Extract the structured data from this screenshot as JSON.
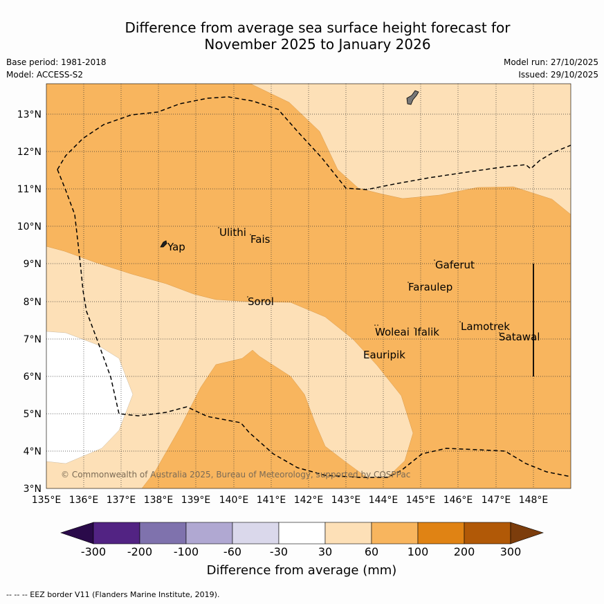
{
  "title_line1": "Difference from average sea surface height forecast for",
  "title_line2": "November 2025 to January 2026",
  "meta": {
    "base_period": "Base period: 1981-2018",
    "model": "Model: ACCESS-S2",
    "model_run": "Model run: 27/10/2025",
    "issued": "Issued: 29/10/2025"
  },
  "map": {
    "x_ticks": [
      "135°E",
      "136°E",
      "137°E",
      "138°E",
      "139°E",
      "140°E",
      "141°E",
      "142°E",
      "143°E",
      "144°E",
      "145°E",
      "146°E",
      "147°E",
      "148°E"
    ],
    "y_ticks": [
      "13°N",
      "12°N",
      "11°N",
      "10°N",
      "9°N",
      "8°N",
      "7°N",
      "6°N",
      "5°N",
      "4°N",
      "3°N"
    ],
    "places": {
      "yap": "Yap",
      "ulithi": "Ulithi",
      "fais": "Fais",
      "sorol": "Sorol",
      "gaferut": "Gaferut",
      "faraulep": "Faraulep",
      "woleai": "Woleai",
      "ifalik": "Ifalik",
      "eauripik": "Eauripik",
      "lamotrek": "Lamotrek",
      "satawal": "Satawal"
    },
    "copyright": "© Commonwealth of Australia 2025, Bureau of Meteorology, supported by COSPPac"
  },
  "colorbar": {
    "ticks": [
      "-300",
      "-200",
      "-100",
      "-60",
      "-30",
      "30",
      "60",
      "100",
      "200",
      "300"
    ],
    "title": "Difference from average (mm)",
    "colors": {
      "lt_m300": "#2a0a4a",
      "m300_m200": "#522383",
      "m200_m100": "#7f72ad",
      "m100_m60": "#b0a8d2",
      "m60_m30": "#dad8eb",
      "m30_30": "#ffffff",
      "p30_60": "#fde0b7",
      "p60_100": "#f8b55e",
      "p100_200": "#e08314",
      "p200_300": "#b15907",
      "gt_300": "#7c3d0c"
    }
  },
  "footer": "--  --  -- EEZ border V11 (Flanders Marine Institute, 2019)."
}
